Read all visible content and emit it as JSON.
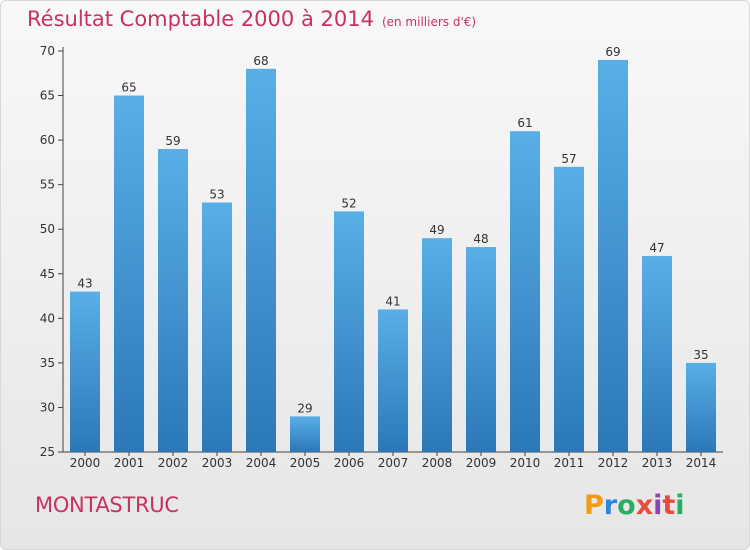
{
  "header": {
    "title": "Résultat Comptable 2000 à 2014",
    "subtitle": "(en milliers d'€)"
  },
  "footer": {
    "commune": "MONTASTRUC",
    "logo_text": "Proxiti"
  },
  "colors": {
    "title": "#c8325f",
    "bar_top": "#5aaee6",
    "bar_bottom": "#2a78b8",
    "axis": "#444444"
  },
  "chart_data": {
    "type": "bar",
    "title": "Résultat Comptable 2000 à 2014",
    "subtitle": "(en milliers d'€)",
    "xlabel": "",
    "ylabel": "",
    "categories": [
      "2000",
      "2001",
      "2002",
      "2003",
      "2004",
      "2005",
      "2006",
      "2007",
      "2008",
      "2009",
      "2010",
      "2011",
      "2012",
      "2013",
      "2014"
    ],
    "values": [
      43,
      65,
      59,
      53,
      68,
      29,
      52,
      41,
      49,
      48,
      61,
      57,
      69,
      47,
      35
    ],
    "ylim": [
      25,
      70
    ],
    "yticks": [
      25,
      30,
      35,
      40,
      45,
      50,
      55,
      60,
      65,
      70
    ],
    "grid": false,
    "legend": "none",
    "data_labels": true
  }
}
